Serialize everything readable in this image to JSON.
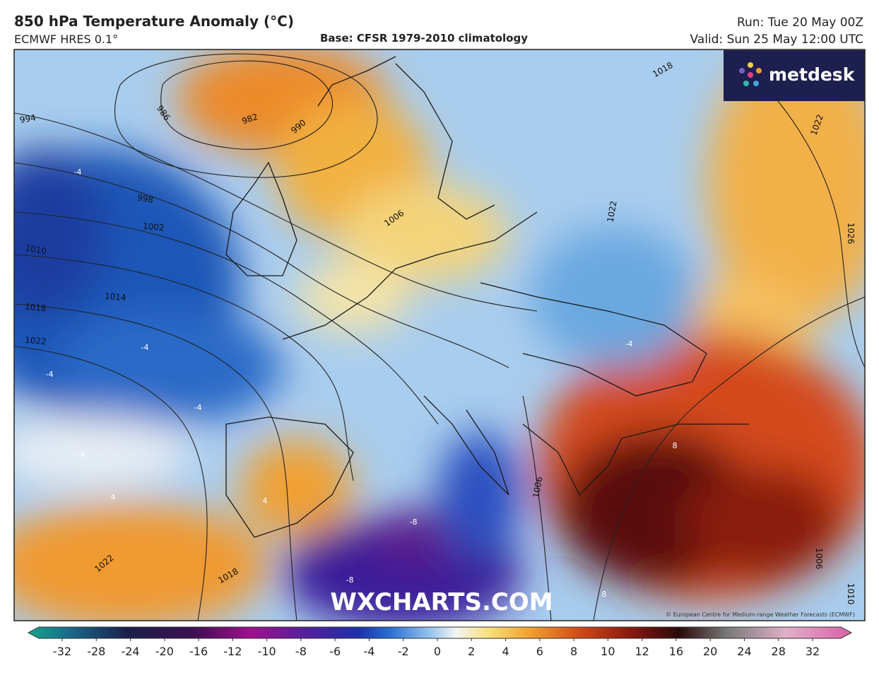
{
  "header": {
    "title": "850 hPa Temperature Anomaly (°C)",
    "model": "ECMWF HRES 0.1°",
    "base": "Base: CFSR 1979-2010 climatology",
    "run": "Run: Tue 20 May 00Z",
    "valid": "Valid: Sun 25 May 12:00 UTC"
  },
  "map": {
    "isobar_labels": [
      "994",
      "986",
      "982",
      "990",
      "998",
      "1002",
      "1006",
      "1010",
      "1014",
      "1018",
      "1022",
      "1018",
      "1022",
      "1022",
      "1026",
      "1006",
      "1022",
      "1018",
      "1010",
      "1006"
    ],
    "anomaly_labels": [
      "-4",
      "-4",
      "-4",
      "-4",
      "-4",
      "-4",
      "4",
      "4",
      "-8",
      "-8",
      "8",
      "8"
    ],
    "brand": "metdesk",
    "watermark": "WXCHARTS.COM",
    "credit": "© European Centre for Medium-range Weather Forecasts (ECMWF)"
  },
  "colorbar": {
    "ticks": [
      -32,
      -28,
      -24,
      -20,
      -16,
      -12,
      -10,
      -8,
      -6,
      -4,
      -2,
      0,
      2,
      4,
      6,
      8,
      10,
      12,
      16,
      20,
      24,
      28,
      32
    ]
  }
}
